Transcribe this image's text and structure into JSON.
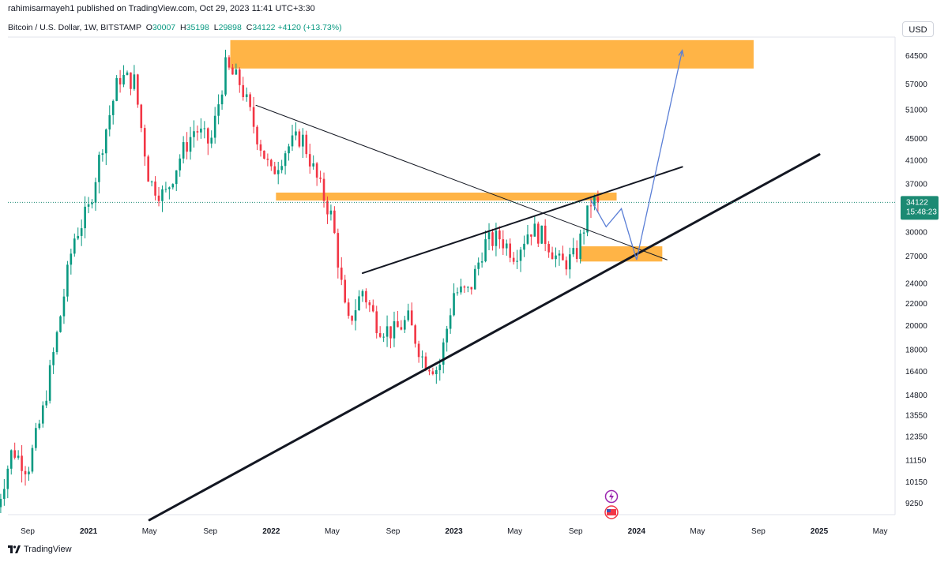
{
  "header": {
    "publisher_line": "rahimisarmayeh1 published on TradingView.com, Oct 29, 2023 11:41 UTC+3:30",
    "symbol": "Bitcoin / U.S. Dollar, 1W, BITSTAMP",
    "open_label": "O",
    "open": "30007",
    "high_label": "H",
    "high": "35198",
    "low_label": "L",
    "low": "29898",
    "close_label": "C",
    "close": "34122",
    "change": "+4120 (+13.73%)"
  },
  "currency": "USD",
  "price_tag": {
    "price": "34122",
    "countdown": "15:48:23"
  },
  "brand": "TradingView",
  "colors": {
    "up": "#089981",
    "down": "#f23645",
    "zone": "#ffa726",
    "projection": "#5b7fd6",
    "tag": "#1b8a73"
  },
  "chart_data": {
    "type": "candlestick",
    "yscale": "log",
    "ylim": [
      8600,
      72000
    ],
    "xlim": [
      "2020-07",
      "2025-05"
    ],
    "y_ticks": [
      64500,
      57000,
      51000,
      45000,
      41000,
      37000,
      34122,
      30000,
      27000,
      24000,
      22000,
      20000,
      18000,
      16400,
      14800,
      13550,
      12350,
      11150,
      10150,
      9250
    ],
    "x_ticks": [
      {
        "label": "Sep",
        "x": "2020-09",
        "bold": false
      },
      {
        "label": "2021",
        "x": "2021-01",
        "bold": true
      },
      {
        "label": "May",
        "x": "2021-05",
        "bold": false
      },
      {
        "label": "Sep",
        "x": "2021-09",
        "bold": false
      },
      {
        "label": "2022",
        "x": "2022-01",
        "bold": true
      },
      {
        "label": "May",
        "x": "2022-05",
        "bold": false
      },
      {
        "label": "Sep",
        "x": "2022-09",
        "bold": false
      },
      {
        "label": "2023",
        "x": "2023-01",
        "bold": true
      },
      {
        "label": "May",
        "x": "2023-05",
        "bold": false
      },
      {
        "label": "Sep",
        "x": "2023-09",
        "bold": false
      },
      {
        "label": "2024",
        "x": "2024-01",
        "bold": true
      },
      {
        "label": "May",
        "x": "2024-05",
        "bold": false
      },
      {
        "label": "Sep",
        "x": "2024-09",
        "bold": false
      },
      {
        "label": "2025",
        "x": "2025-01",
        "bold": true
      },
      {
        "label": "May",
        "x": "2025-05",
        "bold": false
      }
    ],
    "key_closes": [
      [
        "2020-07",
        9100
      ],
      [
        "2020-08",
        11700
      ],
      [
        "2020-09",
        10700
      ],
      [
        "2020-10",
        13800
      ],
      [
        "2020-11",
        19700
      ],
      [
        "2020-12",
        29000
      ],
      [
        "2021-01",
        33100
      ],
      [
        "2021-02",
        45200
      ],
      [
        "2021-03",
        58800
      ],
      [
        "2021-04",
        57700
      ],
      [
        "2021-05",
        37300
      ],
      [
        "2021-06",
        35000
      ],
      [
        "2021-07",
        41500
      ],
      [
        "2021-08",
        47100
      ],
      [
        "2021-09",
        43800
      ],
      [
        "2021-10",
        61300
      ],
      [
        "2021-11",
        57000
      ],
      [
        "2021-12",
        46200
      ],
      [
        "2022-01",
        38500
      ],
      [
        "2022-02",
        43200
      ],
      [
        "2022-03",
        45500
      ],
      [
        "2022-04",
        37700
      ],
      [
        "2022-05",
        31800
      ],
      [
        "2022-06",
        19900
      ],
      [
        "2022-07",
        23300
      ],
      [
        "2022-08",
        20000
      ],
      [
        "2022-09",
        19400
      ],
      [
        "2022-10",
        20500
      ],
      [
        "2022-11",
        17200
      ],
      [
        "2022-12",
        16500
      ],
      [
        "2023-01",
        23100
      ],
      [
        "2023-02",
        23100
      ],
      [
        "2023-03",
        28500
      ],
      [
        "2023-04",
        29300
      ],
      [
        "2023-05",
        27200
      ],
      [
        "2023-06",
        30500
      ],
      [
        "2023-07",
        29200
      ],
      [
        "2023-08",
        26000
      ],
      [
        "2023-09",
        27000
      ],
      [
        "2023-10",
        34122
      ]
    ],
    "zones": [
      {
        "from": "2021-10",
        "to": "2024-09",
        "low": 61000,
        "high": 69000
      },
      {
        "from": "2022-01",
        "to": "2023-12",
        "low": 34400,
        "high": 35600
      },
      {
        "from": "2023-09",
        "to": "2024-03",
        "low": 26400,
        "high": 28200
      }
    ],
    "trendlines": [
      {
        "from": [
          "2021-12",
          52000
        ],
        "to": [
          "2024-03",
          26600
        ],
        "weight": "thin"
      },
      {
        "from": [
          "2022-07",
          25100
        ],
        "to": [
          "2024-04",
          39800
        ],
        "weight": "medium"
      },
      {
        "from": [
          "2021-05",
          8600
        ],
        "to": [
          "2025-01",
          42000
        ],
        "weight": "thick"
      }
    ],
    "projection": [
      [
        "2023-10",
        34500
      ],
      [
        "2023-11",
        30700
      ],
      [
        "2023-12",
        33200
      ],
      [
        "2024-01",
        26600
      ],
      [
        "2024-04",
        66000
      ]
    ]
  }
}
